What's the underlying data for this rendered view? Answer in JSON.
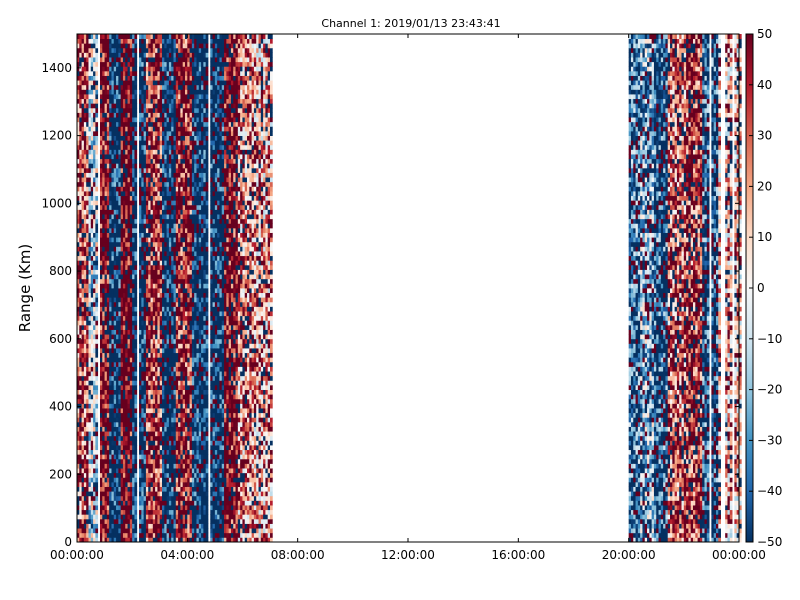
{
  "chart_data": {
    "type": "heatmap",
    "title": "Channel 1: 2019/01/13 23:43:41",
    "xlabel": "",
    "ylabel": "Range (Km)",
    "x_range": [
      "00:00:00",
      "24:00:00"
    ],
    "xticks": [
      "00:00:00",
      "04:00:00",
      "08:00:00",
      "12:00:00",
      "16:00:00",
      "20:00:00",
      "00:00:00"
    ],
    "xtick_hours": [
      0,
      4,
      8,
      12,
      16,
      20,
      24
    ],
    "ylim": [
      0,
      1500
    ],
    "yticks": [
      0,
      200,
      400,
      600,
      800,
      1000,
      1200,
      1400
    ],
    "colorbar": {
      "colormap": "RdBu_r",
      "range": [
        -50,
        50
      ],
      "ticks": [
        50,
        40,
        30,
        20,
        10,
        0,
        -10,
        -20,
        -30,
        -40,
        -50
      ],
      "tick_labels": [
        "50",
        "40",
        "30",
        "20",
        "10",
        "0",
        "−10",
        "−20",
        "−30",
        "−40",
        "−50"
      ]
    },
    "grid": false,
    "data_segments": [
      {
        "start_hour": 0.0,
        "end_hour": 7.0,
        "description": "dense mixed values"
      },
      {
        "start_hour": 20.0,
        "end_hour": 24.0,
        "description": "dense mixed values"
      }
    ],
    "columns": [
      {
        "hour": 0.1,
        "level": 30
      },
      {
        "hour": 0.6,
        "level": -10
      },
      {
        "hour": 0.9,
        "level": 45
      },
      {
        "hour": 1.3,
        "level": -50
      },
      {
        "hour": 1.7,
        "level": 50
      },
      {
        "hour": 2.2,
        "level": -50
      },
      {
        "hour": 2.7,
        "level": 35
      },
      {
        "hour": 3.3,
        "level": -50
      },
      {
        "hour": 3.8,
        "level": 40
      },
      {
        "hour": 4.4,
        "level": -50
      },
      {
        "hour": 5.0,
        "level": -50
      },
      {
        "hour": 5.5,
        "level": 45
      },
      {
        "hour": 6.1,
        "level": 20
      },
      {
        "hour": 6.6,
        "level": 15
      },
      {
        "hour": 20.1,
        "level": -35
      },
      {
        "hour": 20.6,
        "level": -20
      },
      {
        "hour": 21.1,
        "level": -40
      },
      {
        "hour": 21.7,
        "level": 25
      },
      {
        "hour": 22.3,
        "level": 35
      },
      {
        "hour": 22.9,
        "level": -40
      },
      {
        "hour": 23.5,
        "level": 10
      }
    ]
  }
}
